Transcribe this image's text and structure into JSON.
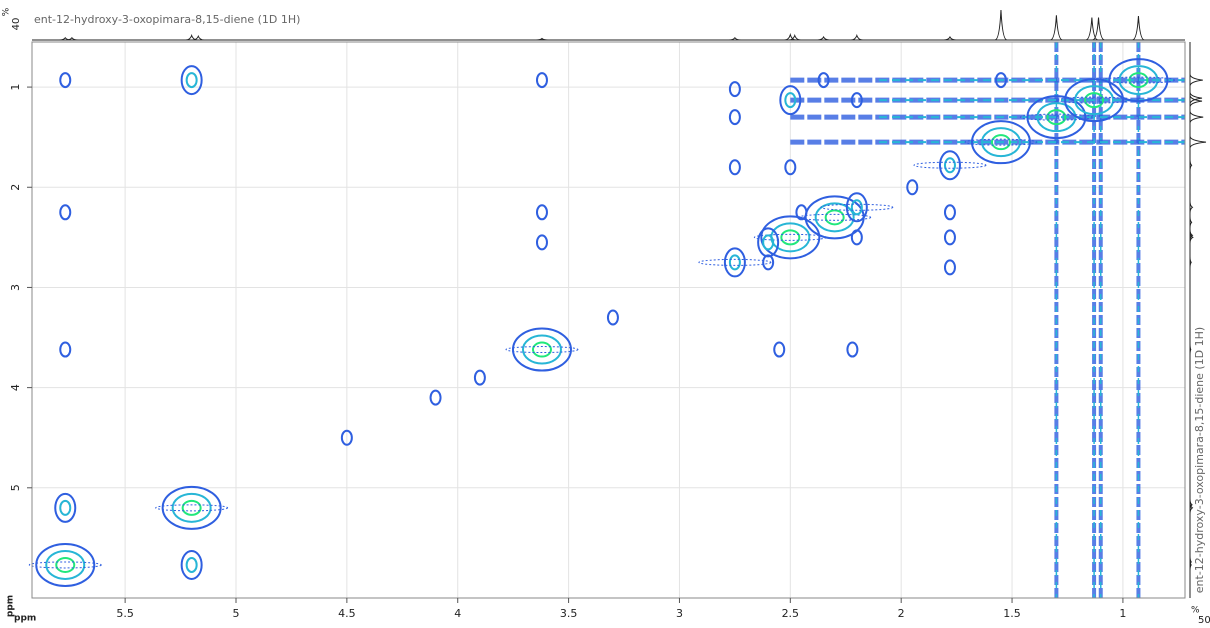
{
  "chart_data": {
    "type": "contour",
    "title": "ent-12-hydroxy-3-oxopimara-8,15-diene (1D 1H)",
    "side_title": "ent-12-hydroxy-3-oxopimara-8,15-diene (1D 1H)",
    "x_label": "ppm",
    "y_label": "ppm",
    "xlim": [
      5.92,
      0.72
    ],
    "ylim": [
      0.55,
      6.1
    ],
    "xticks": [
      5.5,
      5,
      4.5,
      4,
      3.5,
      3,
      2.5,
      2,
      1.5,
      1
    ],
    "yticks": [
      1,
      2,
      3,
      4,
      5
    ],
    "grid": true,
    "colors": [
      "#2f5fe0",
      "#27b6d6",
      "#21e87c"
    ],
    "peaks": {
      "x": [
        5.77,
        5.2,
        3.62,
        2.75,
        2.5,
        2.3,
        2.2,
        1.78,
        1.55,
        1.3,
        1.13,
        0.93,
        4.1,
        3.3,
        2.6,
        1.95,
        4.5,
        3.9,
        5.77,
        5.2,
        3.62,
        5.77,
        5.77,
        5.77,
        5.2,
        3.62,
        3.62,
        2.55,
        2.22,
        2.75,
        2.75,
        2.75,
        2.5,
        2.5,
        2.2,
        2.2,
        1.78,
        1.78,
        1.78,
        2.35,
        1.55,
        2.45,
        2.6
      ],
      "y": [
        5.77,
        5.2,
        3.62,
        2.75,
        2.5,
        2.3,
        2.2,
        1.78,
        1.55,
        1.3,
        1.13,
        0.93,
        4.1,
        3.3,
        2.55,
        2.0,
        4.5,
        3.9,
        0.93,
        0.93,
        0.93,
        2.25,
        3.62,
        5.2,
        5.77,
        2.25,
        2.55,
        3.62,
        3.62,
        1.02,
        1.3,
        1.8,
        1.13,
        1.8,
        1.13,
        2.5,
        2.25,
        2.5,
        2.8,
        0.93,
        0.93,
        2.25,
        2.75
      ],
      "level": [
        3,
        3,
        3,
        2,
        3,
        3,
        2,
        2,
        3,
        3,
        3,
        3,
        1,
        1,
        2,
        1,
        1,
        1,
        1,
        2,
        1,
        1,
        1,
        2,
        2,
        1,
        1,
        1,
        1,
        1,
        1,
        1,
        2,
        1,
        1,
        1,
        1,
        1,
        1,
        1,
        1,
        1,
        1
      ]
    },
    "vertical_ridges": [
      1.3,
      1.13,
      1.1,
      0.93
    ],
    "horizontal_ridges": [
      0.93,
      1.13,
      1.3,
      1.55
    ],
    "projection": {
      "unit": "%",
      "top_max": 40,
      "side_max": 50,
      "x": [
        5.77,
        5.74,
        5.2,
        5.17,
        3.62,
        2.75,
        2.5,
        2.48,
        2.35,
        2.2,
        1.78,
        1.55,
        1.3,
        1.14,
        1.11,
        0.93
      ],
      "heights": [
        3,
        3,
        6,
        5,
        2,
        3,
        7,
        6,
        4,
        6,
        4,
        40,
        33,
        30,
        30,
        32
      ]
    }
  }
}
